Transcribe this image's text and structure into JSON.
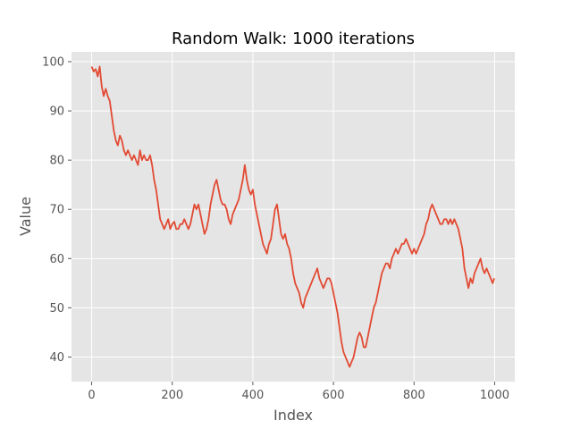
{
  "chart_data": {
    "type": "line",
    "title": "Random Walk: 1000 iterations",
    "xlabel": "Index",
    "ylabel": "Value",
    "xlim": [
      -50,
      1050
    ],
    "ylim": [
      35,
      102
    ],
    "x_ticks": [
      0,
      200,
      400,
      600,
      800,
      1000
    ],
    "y_ticks": [
      40,
      50,
      60,
      70,
      80,
      90,
      100
    ],
    "grid": true,
    "colors": {
      "line": "#E24A33",
      "plot_bg": "#E5E5E5",
      "grid": "#FFFFFF",
      "tick_text": "#555555"
    },
    "series": [
      {
        "x": [
          0,
          5,
          10,
          15,
          20,
          25,
          30,
          35,
          40,
          45,
          50,
          55,
          60,
          65,
          70,
          75,
          80,
          85,
          90,
          95,
          100,
          105,
          110,
          115,
          120,
          125,
          130,
          135,
          140,
          145,
          150,
          155,
          160,
          165,
          170,
          175,
          180,
          185,
          190,
          195,
          200,
          205,
          210,
          215,
          220,
          225,
          230,
          235,
          240,
          245,
          250,
          255,
          260,
          265,
          270,
          275,
          280,
          285,
          290,
          295,
          300,
          305,
          310,
          315,
          320,
          325,
          330,
          335,
          340,
          345,
          350,
          355,
          360,
          365,
          370,
          375,
          380,
          385,
          390,
          395,
          400,
          405,
          410,
          415,
          420,
          425,
          430,
          435,
          440,
          445,
          450,
          455,
          460,
          465,
          470,
          475,
          480,
          485,
          490,
          495,
          500,
          505,
          510,
          515,
          520,
          525,
          530,
          535,
          540,
          545,
          550,
          555,
          560,
          565,
          570,
          575,
          580,
          585,
          590,
          595,
          600,
          605,
          610,
          615,
          620,
          625,
          630,
          635,
          640,
          645,
          650,
          655,
          660,
          665,
          670,
          675,
          680,
          685,
          690,
          695,
          700,
          705,
          710,
          715,
          720,
          725,
          730,
          735,
          740,
          745,
          750,
          755,
          760,
          765,
          770,
          775,
          780,
          785,
          790,
          795,
          800,
          805,
          810,
          815,
          820,
          825,
          830,
          835,
          840,
          845,
          850,
          855,
          860,
          865,
          870,
          875,
          880,
          885,
          890,
          895,
          900,
          905,
          910,
          915,
          920,
          925,
          930,
          935,
          940,
          945,
          950,
          955,
          960,
          965,
          970,
          975,
          980,
          985,
          990,
          995,
          999
        ],
        "values": [
          99,
          98,
          98.5,
          97,
          99,
          95,
          93,
          94.5,
          93,
          92,
          89,
          86,
          84,
          83,
          85,
          84,
          82,
          81,
          82,
          81,
          80,
          81,
          80,
          79,
          82,
          80,
          81,
          80,
          80,
          81,
          79,
          76,
          74,
          71,
          68,
          67,
          66,
          67,
          68,
          66,
          67,
          67.5,
          66,
          66,
          67,
          67,
          68,
          67,
          66,
          67,
          69,
          71,
          70,
          71,
          69,
          67,
          65,
          66,
          68,
          71,
          73,
          75,
          76,
          74,
          72,
          71,
          71,
          70,
          68,
          67,
          69,
          70,
          71,
          72,
          74,
          76,
          79,
          76,
          74,
          73,
          74,
          71,
          69,
          67,
          65,
          63,
          62,
          61,
          63,
          64,
          67,
          70,
          71,
          68,
          65,
          64,
          65,
          63,
          62,
          60,
          57,
          55,
          54,
          53,
          51,
          50,
          52,
          53,
          54,
          55,
          56,
          57,
          58,
          56,
          55,
          54,
          55,
          56,
          56,
          55,
          53,
          51,
          49,
          46,
          43,
          41,
          40,
          39,
          38,
          39,
          40,
          42,
          44,
          45,
          44,
          42,
          42,
          44,
          46,
          48,
          50,
          51,
          53,
          55,
          57,
          58,
          59,
          59,
          58,
          60,
          61,
          62,
          61,
          62,
          63,
          63,
          64,
          63,
          62,
          61,
          62,
          61,
          62,
          63,
          64,
          65,
          67,
          68,
          70,
          71,
          70,
          69,
          68,
          67,
          67,
          68,
          68,
          67,
          68,
          67,
          68,
          67,
          66,
          64,
          62,
          58,
          56,
          54,
          56,
          55,
          57,
          58,
          59,
          60,
          58,
          57,
          58,
          57,
          56,
          55,
          56
        ]
      }
    ]
  }
}
